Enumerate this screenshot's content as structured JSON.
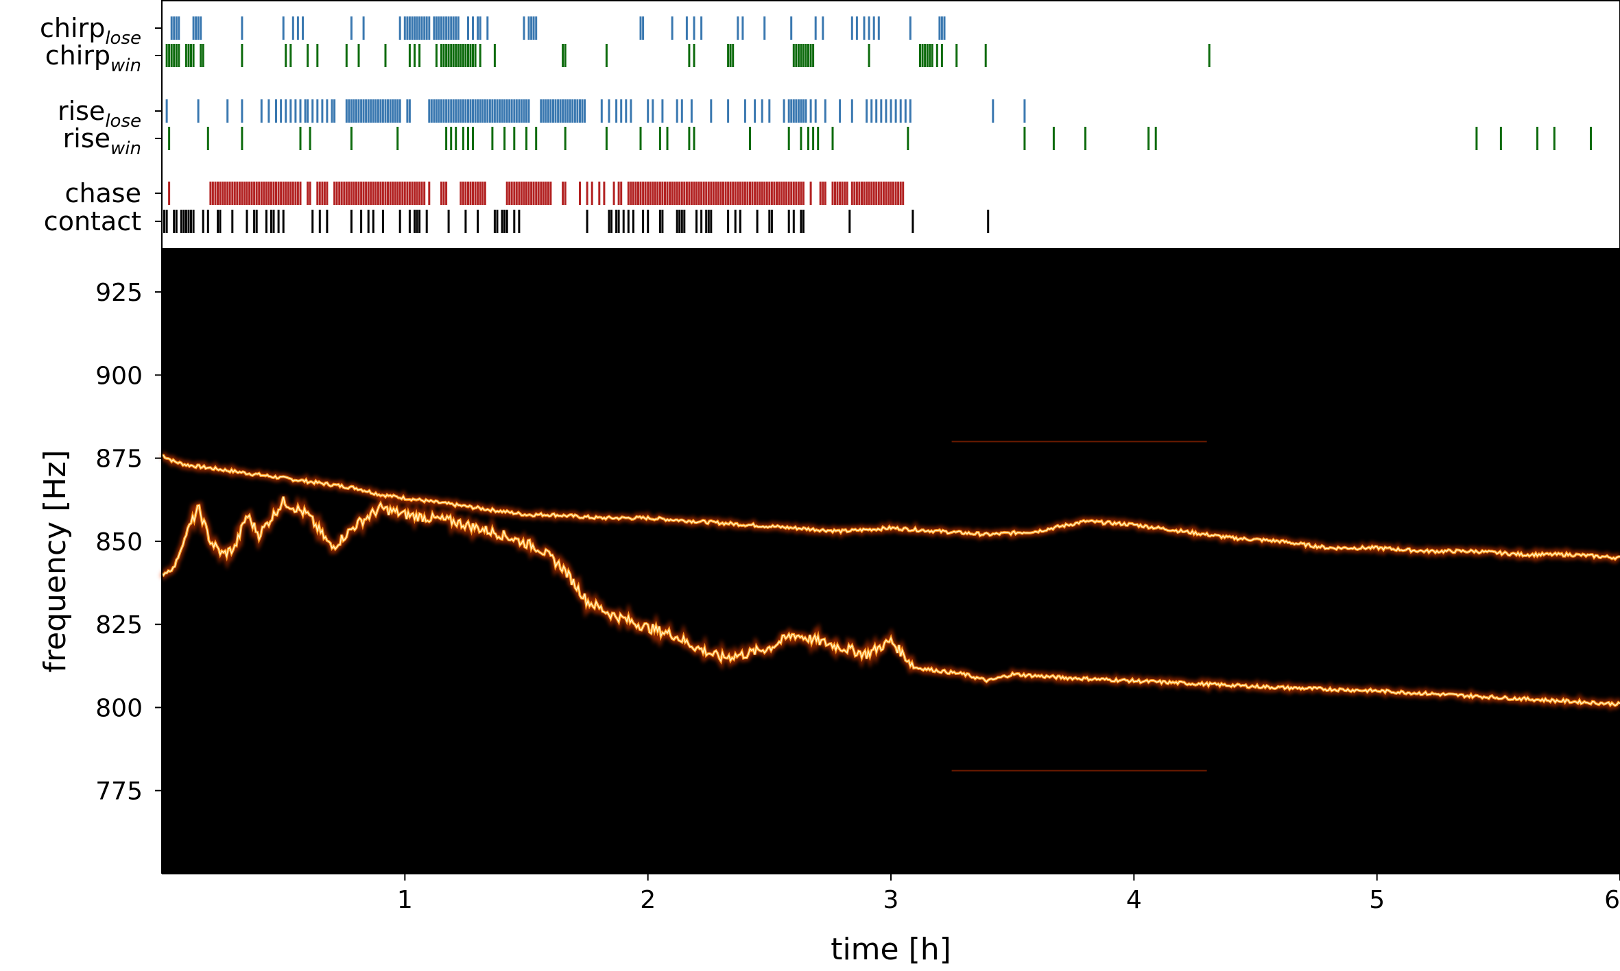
{
  "chart_data": [
    {
      "type": "event-raster",
      "x_units": "h",
      "xlim": [
        0,
        6
      ],
      "rows": [
        {
          "name": "chirp_lose",
          "label_main": "chirp",
          "label_sub": "lose",
          "color": "#3a78b0",
          "events": [
            0.04,
            0.05,
            0.06,
            0.07,
            0.13,
            0.14,
            0.15,
            0.16,
            0.33,
            0.5,
            0.54,
            0.56,
            0.58,
            0.78,
            0.83,
            0.98,
            1.0,
            1.01,
            1.02,
            1.03,
            1.04,
            1.05,
            1.06,
            1.07,
            1.08,
            1.09,
            1.1,
            1.12,
            1.13,
            1.14,
            1.15,
            1.16,
            1.17,
            1.18,
            1.19,
            1.2,
            1.21,
            1.22,
            1.26,
            1.28,
            1.3,
            1.31,
            1.34,
            1.49,
            1.51,
            1.52,
            1.53,
            1.54,
            1.97,
            1.98,
            2.1,
            2.16,
            2.19,
            2.22,
            2.37,
            2.39,
            2.48,
            2.59,
            2.69,
            2.72,
            2.84,
            2.86,
            2.89,
            2.91,
            2.93,
            2.95,
            3.08,
            3.2,
            3.21,
            3.22
          ]
        },
        {
          "name": "chirp_win",
          "label_main": "chirp",
          "label_sub": "win",
          "color": "#0d6b0d",
          "events": [
            0.02,
            0.03,
            0.04,
            0.05,
            0.06,
            0.07,
            0.1,
            0.11,
            0.12,
            0.13,
            0.16,
            0.17,
            0.33,
            0.51,
            0.53,
            0.6,
            0.64,
            0.76,
            0.81,
            0.92,
            1.02,
            1.04,
            1.06,
            1.13,
            1.15,
            1.16,
            1.17,
            1.18,
            1.19,
            1.2,
            1.21,
            1.22,
            1.23,
            1.24,
            1.25,
            1.26,
            1.27,
            1.28,
            1.29,
            1.31,
            1.37,
            1.65,
            1.66,
            1.83,
            2.17,
            2.19,
            2.33,
            2.34,
            2.35,
            2.6,
            2.61,
            2.62,
            2.63,
            2.64,
            2.65,
            2.66,
            2.67,
            2.68,
            2.91,
            3.12,
            3.13,
            3.14,
            3.15,
            3.16,
            3.17,
            3.19,
            3.21,
            3.27,
            3.39,
            4.31
          ]
        },
        {
          "name": "rise_lose",
          "label_main": "rise",
          "label_sub": "lose",
          "color": "#3a78b0",
          "events": [
            0.02,
            0.15,
            0.27,
            0.33,
            0.41,
            0.44,
            0.47,
            0.49,
            0.51,
            0.53,
            0.55,
            0.57,
            0.59,
            0.6,
            0.62,
            0.64,
            0.66,
            0.68,
            0.7,
            0.71,
            0.76,
            0.77,
            0.78,
            0.79,
            0.8,
            0.81,
            0.82,
            0.83,
            0.84,
            0.85,
            0.86,
            0.87,
            0.88,
            0.89,
            0.9,
            0.91,
            0.92,
            0.93,
            0.94,
            0.95,
            0.96,
            0.97,
            0.98,
            1.01,
            1.02,
            1.1,
            1.11,
            1.12,
            1.13,
            1.14,
            1.15,
            1.16,
            1.17,
            1.18,
            1.19,
            1.2,
            1.21,
            1.22,
            1.23,
            1.24,
            1.25,
            1.26,
            1.27,
            1.28,
            1.29,
            1.3,
            1.31,
            1.32,
            1.33,
            1.34,
            1.35,
            1.36,
            1.37,
            1.38,
            1.39,
            1.4,
            1.41,
            1.42,
            1.43,
            1.44,
            1.45,
            1.46,
            1.47,
            1.48,
            1.49,
            1.5,
            1.51,
            1.56,
            1.57,
            1.58,
            1.59,
            1.6,
            1.61,
            1.62,
            1.63,
            1.64,
            1.65,
            1.66,
            1.67,
            1.68,
            1.69,
            1.7,
            1.71,
            1.72,
            1.73,
            1.74,
            1.81,
            1.84,
            1.87,
            1.89,
            1.91,
            1.93,
            2.0,
            2.02,
            2.06,
            2.12,
            2.14,
            2.18,
            2.26,
            2.33,
            2.4,
            2.44,
            2.47,
            2.5,
            2.56,
            2.58,
            2.59,
            2.6,
            2.61,
            2.62,
            2.63,
            2.64,
            2.65,
            2.67,
            2.69,
            2.73,
            2.79,
            2.84,
            2.9,
            2.92,
            2.94,
            2.96,
            2.98,
            3.0,
            3.02,
            3.04,
            3.06,
            3.08,
            3.42,
            3.55
          ]
        },
        {
          "name": "rise_win",
          "label_main": "rise",
          "label_sub": "win",
          "color": "#0d6b0d",
          "events": [
            0.03,
            0.19,
            0.33,
            0.57,
            0.61,
            0.78,
            0.97,
            1.17,
            1.19,
            1.21,
            1.24,
            1.26,
            1.28,
            1.36,
            1.41,
            1.45,
            1.5,
            1.54,
            1.66,
            1.83,
            1.97,
            2.05,
            2.08,
            2.17,
            2.19,
            2.42,
            2.58,
            2.63,
            2.66,
            2.68,
            2.7,
            2.76,
            3.07,
            3.55,
            3.67,
            3.8,
            4.06,
            4.09,
            5.41,
            5.51,
            5.66,
            5.73,
            5.88
          ]
        },
        {
          "name": "chase",
          "label_main": "chase",
          "label_sub": "",
          "color": "#b22222",
          "events": [
            0.03,
            0.2,
            0.21,
            0.22,
            0.23,
            0.24,
            0.25,
            0.26,
            0.27,
            0.28,
            0.29,
            0.3,
            0.31,
            0.32,
            0.33,
            0.34,
            0.35,
            0.36,
            0.37,
            0.38,
            0.39,
            0.4,
            0.41,
            0.42,
            0.43,
            0.44,
            0.45,
            0.46,
            0.47,
            0.48,
            0.49,
            0.5,
            0.51,
            0.52,
            0.53,
            0.54,
            0.55,
            0.56,
            0.57,
            0.6,
            0.61,
            0.64,
            0.65,
            0.66,
            0.67,
            0.68,
            0.71,
            0.72,
            0.73,
            0.74,
            0.75,
            0.76,
            0.77,
            0.78,
            0.79,
            0.8,
            0.81,
            0.82,
            0.83,
            0.84,
            0.85,
            0.86,
            0.87,
            0.88,
            0.89,
            0.9,
            0.91,
            0.92,
            0.93,
            0.94,
            0.95,
            0.96,
            0.97,
            0.98,
            0.99,
            1.0,
            1.01,
            1.02,
            1.03,
            1.04,
            1.05,
            1.06,
            1.07,
            1.08,
            1.1,
            1.15,
            1.16,
            1.17,
            1.23,
            1.24,
            1.25,
            1.26,
            1.27,
            1.28,
            1.29,
            1.3,
            1.31,
            1.32,
            1.33,
            1.42,
            1.43,
            1.44,
            1.45,
            1.46,
            1.47,
            1.48,
            1.49,
            1.5,
            1.51,
            1.52,
            1.53,
            1.54,
            1.55,
            1.56,
            1.57,
            1.58,
            1.59,
            1.6,
            1.65,
            1.66,
            1.72,
            1.75,
            1.77,
            1.8,
            1.82,
            1.86,
            1.88,
            1.89,
            1.92,
            1.93,
            1.94,
            1.95,
            1.96,
            1.97,
            1.98,
            1.99,
            2.0,
            2.01,
            2.02,
            2.03,
            2.04,
            2.05,
            2.06,
            2.07,
            2.08,
            2.09,
            2.1,
            2.11,
            2.12,
            2.13,
            2.14,
            2.15,
            2.16,
            2.17,
            2.18,
            2.19,
            2.2,
            2.21,
            2.22,
            2.23,
            2.24,
            2.25,
            2.26,
            2.27,
            2.28,
            2.29,
            2.3,
            2.31,
            2.32,
            2.33,
            2.34,
            2.35,
            2.36,
            2.37,
            2.38,
            2.39,
            2.4,
            2.41,
            2.42,
            2.43,
            2.44,
            2.45,
            2.46,
            2.47,
            2.48,
            2.49,
            2.5,
            2.51,
            2.52,
            2.53,
            2.54,
            2.55,
            2.56,
            2.57,
            2.58,
            2.59,
            2.6,
            2.61,
            2.62,
            2.63,
            2.64,
            2.67,
            2.71,
            2.72,
            2.73,
            2.76,
            2.77,
            2.78,
            2.79,
            2.8,
            2.81,
            2.82,
            2.84,
            2.85,
            2.86,
            2.87,
            2.88,
            2.89,
            2.9,
            2.91,
            2.92,
            2.93,
            2.94,
            2.95,
            2.96,
            2.97,
            2.98,
            2.99,
            3.0,
            3.01,
            3.02,
            3.03,
            3.04,
            3.05
          ]
        },
        {
          "name": "contact",
          "label_main": "contact",
          "label_sub": "",
          "color": "#000000",
          "events": [
            0.01,
            0.02,
            0.05,
            0.06,
            0.08,
            0.09,
            0.1,
            0.11,
            0.12,
            0.13,
            0.17,
            0.19,
            0.23,
            0.24,
            0.29,
            0.35,
            0.38,
            0.39,
            0.43,
            0.45,
            0.46,
            0.48,
            0.5,
            0.62,
            0.65,
            0.68,
            0.78,
            0.82,
            0.85,
            0.87,
            0.91,
            0.98,
            1.02,
            1.04,
            1.05,
            1.06,
            1.09,
            1.18,
            1.25,
            1.3,
            1.37,
            1.38,
            1.4,
            1.41,
            1.42,
            1.45,
            1.47,
            1.75,
            1.84,
            1.85,
            1.87,
            1.88,
            1.9,
            1.92,
            1.94,
            1.98,
            2.0,
            2.05,
            2.06,
            2.12,
            2.13,
            2.14,
            2.15,
            2.2,
            2.22,
            2.24,
            2.25,
            2.26,
            2.33,
            2.36,
            2.38,
            2.45,
            2.5,
            2.51,
            2.58,
            2.6,
            2.63,
            2.64,
            2.83,
            3.09,
            3.4
          ]
        }
      ]
    },
    {
      "type": "heatmap",
      "subtype": "spectrogram",
      "colormap": "afmhot",
      "xlabel": "time [h]",
      "ylabel": "frequency [Hz]",
      "xlim": [
        0,
        6
      ],
      "ylim": [
        750,
        938
      ],
      "xticks": [
        1,
        2,
        3,
        4,
        5,
        6
      ],
      "yticks": [
        775,
        800,
        825,
        850,
        875,
        900,
        925
      ],
      "series": [
        {
          "x": [
            0.0,
            0.05,
            0.1,
            0.2,
            0.3,
            0.4,
            0.5,
            0.6,
            0.7,
            0.8,
            0.9,
            1.0,
            1.1,
            1.2,
            1.3,
            1.4,
            1.5,
            1.6,
            1.8,
            2.0,
            2.2,
            2.4,
            2.6,
            2.8,
            3.0,
            3.2,
            3.4,
            3.6,
            3.8,
            4.0,
            4.2,
            4.4,
            4.6,
            4.8,
            5.0,
            5.2,
            5.4,
            5.6,
            5.8,
            6.0
          ],
          "y": [
            876,
            874,
            873,
            872,
            871,
            870,
            869,
            868,
            867,
            866,
            864,
            863,
            862,
            861,
            860,
            859,
            858,
            858,
            857,
            857,
            856,
            855,
            854,
            853,
            854,
            853,
            852,
            853,
            856,
            855,
            853,
            851,
            850,
            848,
            848,
            847,
            847,
            846,
            846,
            845
          ]
        },
        {
          "x": [
            0.0,
            0.05,
            0.1,
            0.15,
            0.2,
            0.25,
            0.3,
            0.35,
            0.4,
            0.5,
            0.6,
            0.7,
            0.8,
            0.9,
            1.0,
            1.2,
            1.4,
            1.55,
            1.65,
            1.75,
            1.85,
            2.0,
            2.1,
            2.2,
            2.3,
            2.4,
            2.5,
            2.6,
            2.7,
            2.8,
            2.9,
            3.0,
            3.1,
            3.2,
            3.3,
            3.4,
            3.5,
            3.7,
            4.0,
            4.3,
            4.6,
            5.0,
            5.5,
            6.0
          ],
          "y": [
            840,
            842,
            852,
            860,
            850,
            846,
            848,
            858,
            852,
            862,
            858,
            848,
            855,
            860,
            858,
            856,
            852,
            848,
            842,
            832,
            828,
            824,
            822,
            818,
            815,
            816,
            818,
            822,
            820,
            818,
            816,
            820,
            812,
            811,
            810,
            808,
            810,
            809,
            808,
            807,
            806,
            805,
            803,
            801
          ]
        }
      ],
      "faint_lines": [
        {
          "y": 880,
          "x": [
            3.25,
            4.3
          ]
        },
        {
          "y": 781,
          "x": [
            3.25,
            4.3
          ]
        }
      ]
    }
  ]
}
